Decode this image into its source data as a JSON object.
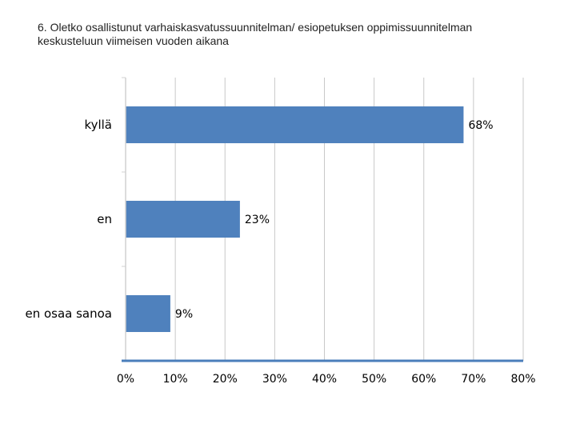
{
  "title": {
    "line1": "6. Oletko osallistunut varhaiskasvatussuunnitelman/ esiopetuksen oppimissuunnitelman",
    "line2": "keskusteluun viimeisen vuoden aikana"
  },
  "chart_data": {
    "type": "bar",
    "orientation": "horizontal",
    "categories": [
      "kyllä",
      "en",
      "en osaa sanoa"
    ],
    "values": [
      68,
      23,
      9
    ],
    "value_labels": [
      "68%",
      "23%",
      "9%"
    ],
    "xlim": [
      0,
      80
    ],
    "x_ticks": [
      "0%",
      "10%",
      "20%",
      "30%",
      "40%",
      "50%",
      "60%",
      "70%",
      "80%"
    ],
    "grid": "vertical",
    "legend": "none",
    "bar_color": "#4f81bd",
    "axis_color": "#4a7ebb",
    "grid_color": "#c8c8c8"
  }
}
